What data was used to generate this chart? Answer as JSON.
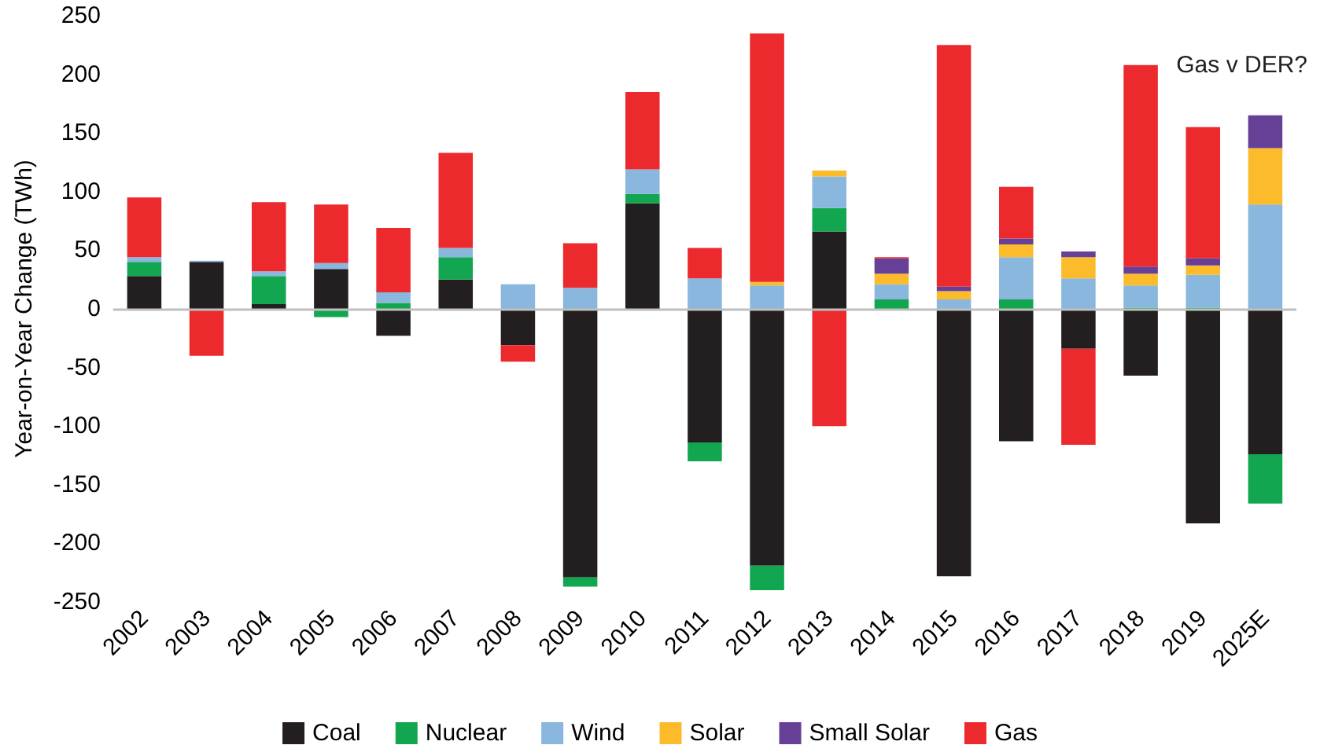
{
  "chart_data": {
    "type": "bar",
    "stacked": true,
    "ylabel": "Year-on-Year Change (TWh)",
    "categories": [
      "2002",
      "2003",
      "2004",
      "2005",
      "2006",
      "2007",
      "2008",
      "2009",
      "2010",
      "2011",
      "2012",
      "2013",
      "2014",
      "2015",
      "2016",
      "2017",
      "2018",
      "2019",
      "2025E"
    ],
    "series": [
      {
        "name": "Coal",
        "color": "#231f20",
        "values": [
          28,
          40,
          4,
          34,
          -23,
          25,
          -31,
          -229,
          90,
          -114,
          -219,
          66,
          null,
          -228,
          -113,
          -34,
          -57,
          -183,
          -124
        ]
      },
      {
        "name": "Nuclear",
        "color": "#12a651",
        "values": [
          12,
          null,
          24,
          -7,
          5,
          19,
          null,
          -8,
          8,
          -16,
          -21,
          20,
          8,
          null,
          8,
          null,
          1,
          1,
          -42
        ]
      },
      {
        "name": "Wind",
        "color": "#8ab7dd",
        "values": [
          4,
          1,
          4,
          5,
          9,
          8,
          21,
          18,
          21,
          26,
          20,
          27,
          13,
          8,
          36,
          26,
          19,
          28,
          89
        ]
      },
      {
        "name": "Solar",
        "color": "#fbbb2a",
        "values": [
          null,
          null,
          null,
          null,
          null,
          null,
          null,
          null,
          null,
          null,
          3,
          5,
          9,
          7,
          11,
          18,
          10,
          8,
          48
        ]
      },
      {
        "name": "Small Solar",
        "color": "#663f97",
        "values": [
          null,
          null,
          null,
          null,
          null,
          null,
          null,
          null,
          null,
          null,
          null,
          null,
          13,
          4,
          5,
          5,
          6,
          6,
          28
        ]
      },
      {
        "name": "Gas",
        "color": "#ec2a2e",
        "values": [
          51,
          -40,
          59,
          50,
          55,
          81,
          -14,
          38,
          66,
          26,
          212,
          -100,
          1,
          206,
          44,
          -82,
          172,
          112,
          null
        ]
      }
    ],
    "ylim": [
      -250,
      250
    ],
    "yticks": [
      -250,
      -200,
      -150,
      -100,
      -50,
      0,
      50,
      100,
      150,
      200,
      250
    ],
    "ref_lines": [
      {
        "axis": "y",
        "value": 0,
        "color": "#bfbfbf",
        "line_style": "solid"
      }
    ],
    "grid": false,
    "legend": "bottom",
    "annotations": [
      "Gas v DER?"
    ]
  }
}
